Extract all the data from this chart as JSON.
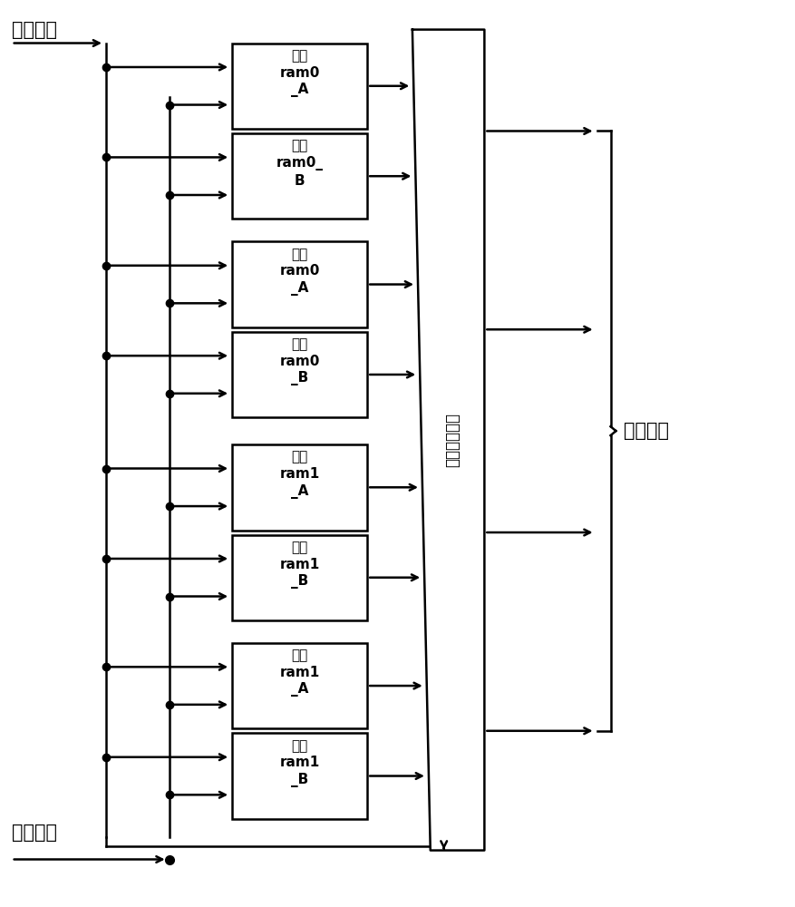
{
  "background_color": "#ffffff",
  "ram_labels": [
    "实部\nram0\n_A",
    "实部\nram0_\nB",
    "虚部\nram0\n_A",
    "虚部\nram0\n_B",
    "实部\nram1\n_A",
    "实部\nram1\n_B",
    "虚部\nram1\n_A",
    "虚部\nram1\n_B"
  ],
  "input_label": "输入数据",
  "control_label": "控制信号",
  "output_label": "输出数据",
  "mux_label": "数据选择单元",
  "fig_width": 8.78,
  "fig_height": 10.0,
  "dpi": 100
}
